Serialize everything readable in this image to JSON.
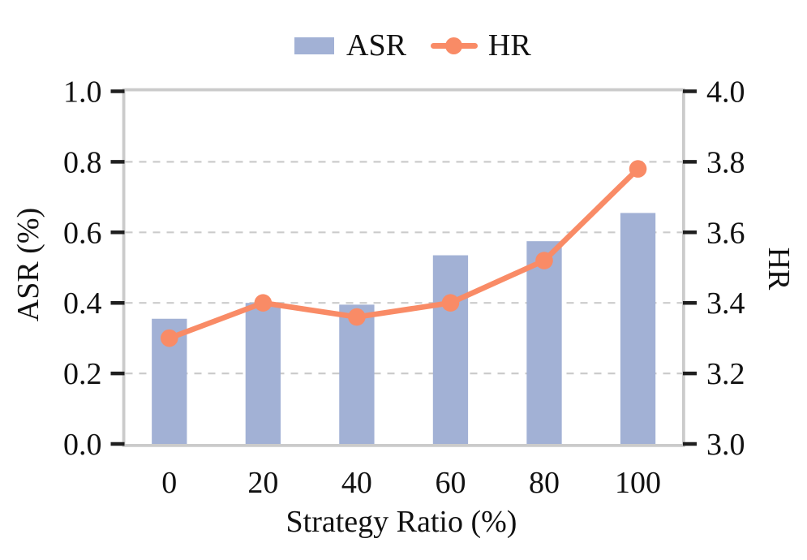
{
  "legend": {
    "items": [
      {
        "label": "ASR",
        "marker": "square-swatch-icon",
        "color": "#a2b1d5"
      },
      {
        "label": "HR",
        "marker": "line-with-circle-icon",
        "color": "#f98b66"
      }
    ]
  },
  "axes": {
    "x": {
      "label": "Strategy Ratio (%)",
      "ticks": [
        "0",
        "20",
        "40",
        "60",
        "80",
        "100"
      ]
    },
    "y_left": {
      "label": "ASR (%)",
      "ticks": [
        "0.0",
        "0.2",
        "0.4",
        "0.6",
        "0.8",
        "1.0"
      ],
      "range": [
        0.0,
        1.0
      ]
    },
    "y_right": {
      "label": "HR",
      "ticks": [
        "3.0",
        "3.2",
        "3.4",
        "3.6",
        "3.8",
        "4.0"
      ],
      "range": [
        3.0,
        4.0
      ]
    }
  },
  "chart_data": {
    "type": "bar+line",
    "categories": [
      0,
      20,
      40,
      60,
      80,
      100
    ],
    "series": [
      {
        "name": "ASR",
        "type": "bar",
        "axis": "left",
        "color": "#a2b1d5",
        "values": [
          0.355,
          0.4,
          0.395,
          0.535,
          0.575,
          0.655
        ]
      },
      {
        "name": "HR",
        "type": "line",
        "axis": "right",
        "color": "#f98b66",
        "values": [
          3.3,
          3.4,
          3.36,
          3.4,
          3.52,
          3.78
        ]
      }
    ],
    "title": "",
    "xlabel": "Strategy Ratio (%)",
    "ylabel_left": "ASR (%)",
    "ylabel_right": "HR",
    "ylim_left": [
      0.0,
      1.0
    ],
    "ylim_right": [
      3.0,
      4.0
    ],
    "grid": "horizontal-dashed",
    "legend_position": "top-center"
  },
  "style": {
    "background": "#ffffff",
    "bar_color": "#a2b1d5",
    "line_color": "#f98b66",
    "grid_color": "#cbcbcb",
    "spine_color": "#cbcbcb",
    "tick_color": "#1f1f1f",
    "text_color": "#111111"
  }
}
